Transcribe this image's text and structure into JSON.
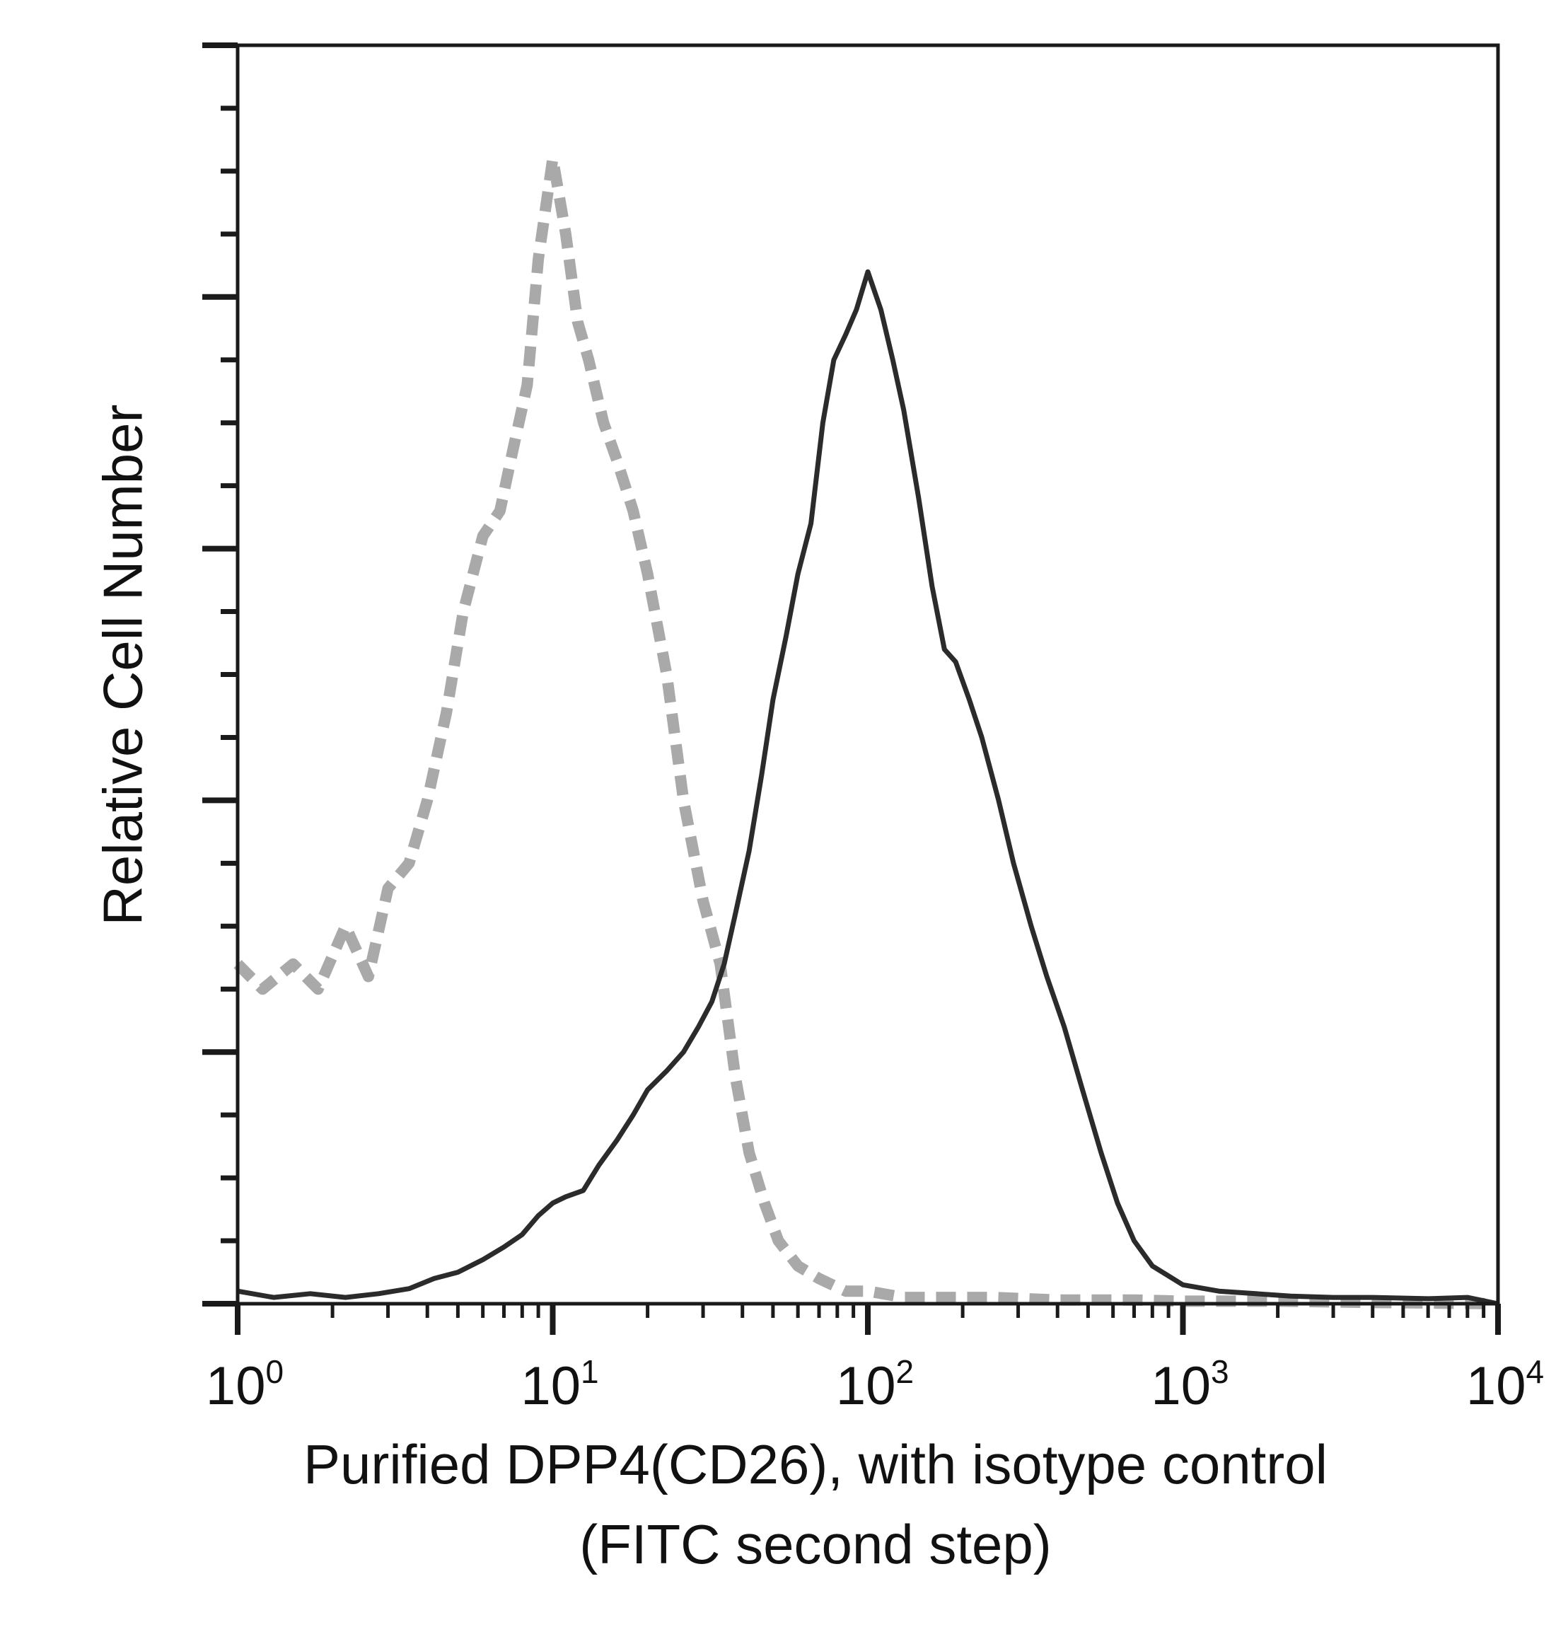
{
  "chart_data": {
    "type": "line",
    "title": "",
    "xlabel_line1": "Purified DPP4(CD26), with isotype control",
    "xlabel_line2": "(FITC second step)",
    "ylabel": "Relative Cell Number",
    "x_scale": "log",
    "xlim": [
      1,
      10000
    ],
    "ylim": [
      0,
      100
    ],
    "x_tick_labels": [
      {
        "base": "10",
        "exp": "0"
      },
      {
        "base": "10",
        "exp": "1"
      },
      {
        "base": "10",
        "exp": "2"
      },
      {
        "base": "10",
        "exp": "3"
      },
      {
        "base": "10",
        "exp": "4"
      }
    ],
    "y_major_ticks": [
      0,
      20,
      40,
      60,
      80,
      100
    ],
    "y_minor_ticks": [
      5,
      10,
      15,
      25,
      30,
      35,
      45,
      50,
      55,
      65,
      70,
      75,
      85,
      90,
      95
    ],
    "grid": false,
    "legend": "none",
    "series": [
      {
        "style": "dashed",
        "color": "#a9a9a9",
        "x": [
          1.0,
          1.2,
          1.5,
          1.8,
          2.2,
          2.6,
          3.0,
          3.5,
          4.0,
          4.6,
          5.2,
          6.0,
          6.8,
          7.5,
          8.3,
          9.0,
          10.0,
          11.0,
          12.0,
          13.0,
          14.5,
          16.0,
          18.0,
          20.0,
          23.0,
          26.0,
          30.0,
          34.0,
          38.0,
          42.0,
          47.0,
          52.0,
          60.0,
          70.0,
          85.0,
          100.0,
          130.0,
          170.0,
          250.0,
          400.0,
          700.0,
          1000.0,
          2000.0,
          4000.0,
          10000.0
        ],
        "y": [
          27,
          25,
          27,
          25,
          30,
          26,
          33,
          35,
          40,
          47,
          55,
          61,
          63,
          68,
          73,
          83,
          91,
          85,
          78,
          75,
          70,
          67,
          63,
          58,
          50,
          40,
          32,
          27,
          18,
          12,
          8,
          5,
          3,
          2,
          1,
          1,
          0.5,
          0.5,
          0.5,
          0.3,
          0.3,
          0.2,
          0.2,
          0.1,
          0
        ]
      },
      {
        "style": "solid",
        "color": "#2b2b2b",
        "x": [
          1.0,
          1.3,
          1.7,
          2.2,
          2.8,
          3.5,
          4.2,
          5.0,
          6.0,
          7.0,
          8.0,
          9.0,
          10.0,
          11.0,
          12.5,
          14.0,
          16.0,
          18.0,
          20.0,
          23.0,
          26.0,
          29.0,
          32.0,
          35.0,
          38.0,
          42.0,
          46.0,
          50.0,
          55.0,
          60.0,
          66.0,
          72.0,
          78.0,
          85.0,
          92.0,
          100.0,
          110.0,
          120.0,
          130.0,
          145.0,
          160.0,
          175.0,
          190.0,
          210.0,
          230.0,
          260.0,
          290.0,
          330.0,
          370.0,
          420.0,
          480.0,
          550.0,
          620.0,
          700.0,
          800.0,
          1000.0,
          1300.0,
          1700.0,
          2200.0,
          3000.0,
          4000.0,
          6000.0,
          8000.0,
          10000.0
        ],
        "y": [
          1,
          0.5,
          0.8,
          0.5,
          0.8,
          1.2,
          2.0,
          2.5,
          3.5,
          4.5,
          5.5,
          7.0,
          8.0,
          8.5,
          9.0,
          11.0,
          13.0,
          15.0,
          17.0,
          18.5,
          20.0,
          22.0,
          24.0,
          27.0,
          31.0,
          36.0,
          42.0,
          48.0,
          53.0,
          58.0,
          62.0,
          70.0,
          75.0,
          77.0,
          79.0,
          82.0,
          79.0,
          75.0,
          71.0,
          64.0,
          57.0,
          52.0,
          51.0,
          48.0,
          45.0,
          40.0,
          35.0,
          30.0,
          26.0,
          22.0,
          17.0,
          12.0,
          8.0,
          5.0,
          3.0,
          1.5,
          1.0,
          0.8,
          0.6,
          0.5,
          0.5,
          0.4,
          0.5,
          0
        ]
      }
    ]
  }
}
